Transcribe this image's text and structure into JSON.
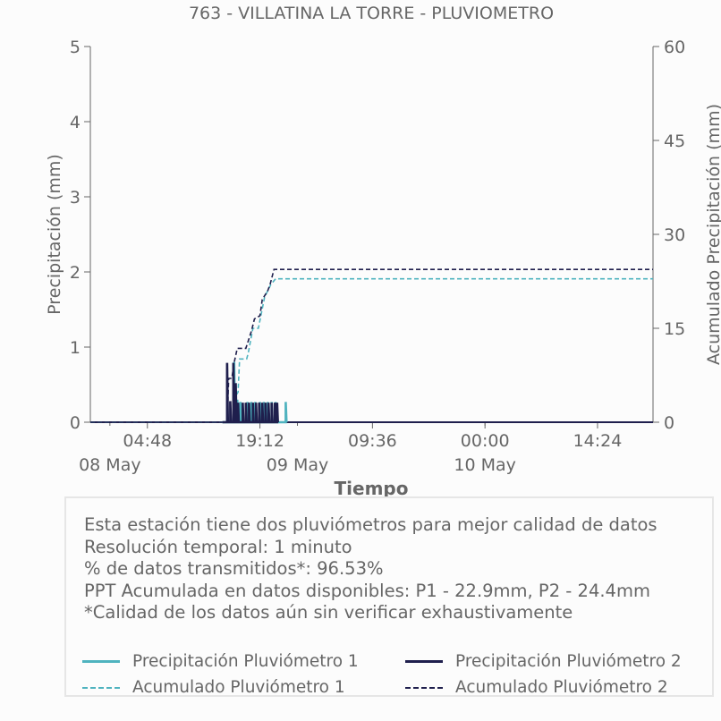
{
  "chart_data": {
    "type": "line",
    "title": "763 - VILLATINA LA TORRE - PLUVIOMETRO",
    "xlabel": "Tiempo",
    "ylabel_left": "Precipitación (mm)",
    "ylabel_right": "Acumulado Precipitación (mm)",
    "ylim_left": [
      0,
      5
    ],
    "ylim_right": [
      0,
      60
    ],
    "yticks_left": [
      "0",
      "1",
      "2",
      "3",
      "4",
      "5"
    ],
    "yticks_right": [
      "0",
      "15",
      "30",
      "45",
      "60"
    ],
    "x_tick_hours": [
      4.8,
      19.2,
      33.6,
      48.0,
      62.4
    ],
    "x_tick_labels": [
      "04:48",
      "19:12",
      "09:36",
      "00:00",
      "14:24"
    ],
    "x_date_hours": [
      0,
      24,
      48
    ],
    "x_date_labels": [
      "08 May",
      "09 May",
      "10 May"
    ],
    "x_range_hours": [
      -2.5,
      69.5
    ],
    "grid": false,
    "colors": {
      "p1": "#4fb3bf",
      "p2": "#1f1f4d",
      "axis": "#666666"
    },
    "series": [
      {
        "name": "Precipitación Pluviómetro 1",
        "axis": "left",
        "style": "solid",
        "color": "#4fb3bf",
        "points": [
          [
            14.4,
            0.0
          ],
          [
            15.9,
            0.0
          ],
          [
            15.9,
            0.8
          ],
          [
            16.0,
            0.0
          ],
          [
            16.3,
            0.0
          ],
          [
            16.3,
            0.3
          ],
          [
            16.4,
            0.0
          ],
          [
            16.7,
            0.0
          ],
          [
            16.7,
            0.27
          ],
          [
            16.8,
            0.0
          ],
          [
            17.6,
            0.0
          ],
          [
            17.6,
            0.27
          ],
          [
            17.7,
            0.0
          ],
          [
            18.1,
            0.0
          ],
          [
            18.1,
            0.27
          ],
          [
            18.2,
            0.0
          ],
          [
            18.6,
            0.0
          ],
          [
            18.6,
            0.27
          ],
          [
            18.7,
            0.0
          ],
          [
            19.2,
            0.0
          ],
          [
            19.2,
            0.27
          ],
          [
            19.3,
            0.0
          ],
          [
            19.7,
            0.0
          ],
          [
            19.7,
            0.27
          ],
          [
            19.8,
            0.0
          ],
          [
            20.2,
            0.0
          ],
          [
            20.2,
            0.27
          ],
          [
            20.3,
            0.0
          ],
          [
            20.7,
            0.0
          ],
          [
            20.7,
            0.27
          ],
          [
            20.8,
            0.0
          ],
          [
            21.2,
            0.0
          ],
          [
            21.2,
            0.27
          ],
          [
            21.3,
            0.0
          ],
          [
            22.5,
            0.0
          ],
          [
            22.5,
            0.27
          ],
          [
            22.6,
            0.0
          ]
        ]
      },
      {
        "name": "Precipitación Pluviómetro 2",
        "axis": "left",
        "style": "solid",
        "color": "#1f1f4d",
        "points": [
          [
            14.4,
            0.0
          ],
          [
            15.0,
            0.0
          ],
          [
            15.0,
            0.79
          ],
          [
            15.1,
            0.0
          ],
          [
            15.4,
            0.0
          ],
          [
            15.4,
            0.28
          ],
          [
            15.5,
            0.0
          ],
          [
            15.8,
            0.0
          ],
          [
            15.8,
            0.79
          ],
          [
            15.9,
            0.0
          ],
          [
            16.1,
            0.0
          ],
          [
            16.1,
            0.52
          ],
          [
            16.2,
            0.0
          ],
          [
            16.4,
            0.0
          ],
          [
            16.4,
            0.26
          ],
          [
            16.5,
            0.0
          ],
          [
            17.0,
            0.0
          ],
          [
            17.0,
            0.26
          ],
          [
            17.1,
            0.0
          ],
          [
            17.4,
            0.0
          ],
          [
            17.4,
            0.26
          ],
          [
            17.5,
            0.0
          ],
          [
            17.8,
            0.0
          ],
          [
            17.8,
            0.26
          ],
          [
            17.9,
            0.0
          ],
          [
            18.3,
            0.0
          ],
          [
            18.3,
            0.26
          ],
          [
            18.4,
            0.0
          ],
          [
            18.7,
            0.0
          ],
          [
            18.7,
            0.26
          ],
          [
            18.8,
            0.0
          ],
          [
            19.1,
            0.0
          ],
          [
            19.1,
            0.26
          ],
          [
            19.2,
            0.0
          ],
          [
            19.5,
            0.0
          ],
          [
            19.5,
            0.26
          ],
          [
            19.6,
            0.0
          ],
          [
            19.9,
            0.0
          ],
          [
            19.9,
            0.26
          ],
          [
            20.0,
            0.0
          ],
          [
            20.3,
            0.0
          ],
          [
            20.3,
            0.26
          ],
          [
            20.4,
            0.0
          ],
          [
            20.7,
            0.0
          ],
          [
            20.7,
            0.26
          ],
          [
            20.8,
            0.0
          ],
          [
            21.1,
            0.0
          ],
          [
            21.1,
            0.26
          ],
          [
            21.2,
            0.0
          ],
          [
            21.4,
            0.0
          ],
          [
            21.4,
            0.26
          ],
          [
            21.5,
            0.0
          ]
        ]
      },
      {
        "name": "Acumulado Pluviómetro 1",
        "axis": "right",
        "style": "dashed",
        "color": "#4fb3bf",
        "points": [
          [
            -2.5,
            0.0
          ],
          [
            15.9,
            0.0
          ],
          [
            16.0,
            4.0
          ],
          [
            16.4,
            4.8
          ],
          [
            16.6,
            10.1
          ],
          [
            17.5,
            10.1
          ],
          [
            17.7,
            11.0
          ],
          [
            18.3,
            15.0
          ],
          [
            19.0,
            15.0
          ],
          [
            19.8,
            20.0
          ],
          [
            20.6,
            22.0
          ],
          [
            21.2,
            22.9
          ],
          [
            69.5,
            22.9
          ]
        ]
      },
      {
        "name": "Acumulado Pluviómetro 2",
        "axis": "right",
        "style": "dashed",
        "color": "#1f1f4d",
        "points": [
          [
            -2.5,
            0.0
          ],
          [
            15.0,
            0.0
          ],
          [
            15.2,
            7.0
          ],
          [
            15.6,
            7.0
          ],
          [
            15.9,
            9.5
          ],
          [
            16.3,
            11.8
          ],
          [
            17.4,
            11.8
          ],
          [
            18.1,
            14.5
          ],
          [
            18.5,
            16.5
          ],
          [
            19.2,
            17.0
          ],
          [
            19.5,
            19.6
          ],
          [
            20.2,
            21.0
          ],
          [
            20.5,
            22.0
          ],
          [
            21.0,
            24.4
          ],
          [
            69.5,
            24.4
          ]
        ]
      }
    ]
  },
  "info": {
    "lines": [
      "Esta estación tiene dos pluviómetros para mejor calidad de datos",
      "Resolución temporal: 1 minuto",
      "% de datos transmitidos*: 96.53%",
      "PPT Acumulada en datos disponibles: P1 - 22.9mm, P2 - 24.4mm",
      "*Calidad de los datos aún sin verificar exhaustivamente"
    ]
  },
  "legend": {
    "items": [
      {
        "label": "Precipitación Pluviómetro 1",
        "color": "#4fb3bf",
        "style": "solid"
      },
      {
        "label": "Precipitación Pluviómetro 2",
        "color": "#1f1f4d",
        "style": "solid"
      },
      {
        "label": "Acumulado Pluviómetro 1",
        "color": "#4fb3bf",
        "style": "dashed"
      },
      {
        "label": "Acumulado Pluviómetro 2",
        "color": "#1f1f4d",
        "style": "dashed"
      }
    ]
  }
}
